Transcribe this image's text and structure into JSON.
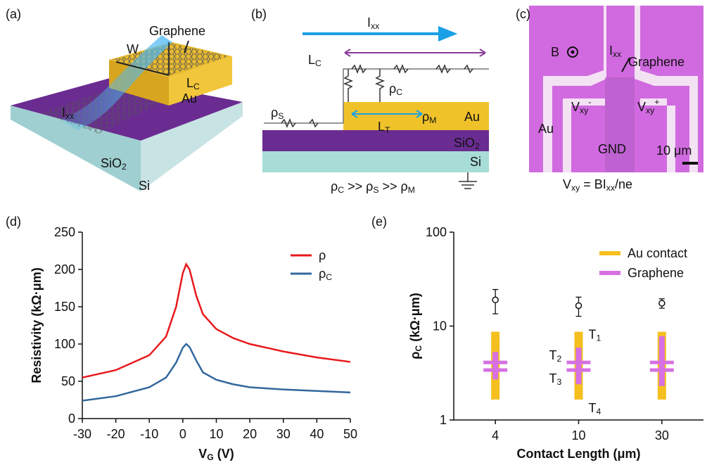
{
  "panels": {
    "a": {
      "label": "(a)",
      "graphene": "Graphene",
      "w": "W",
      "lc": [
        {
          "t": "L"
        },
        {
          "sub": "C"
        }
      ],
      "au": "Au",
      "ixx": [
        {
          "t": "I"
        },
        {
          "sub": "xx"
        }
      ],
      "sio2": [
        {
          "t": "SiO"
        },
        {
          "sub": "2"
        }
      ],
      "si": "Si"
    },
    "b": {
      "label": "(b)",
      "ixx": [
        {
          "t": "I"
        },
        {
          "sub": "xx"
        }
      ],
      "lc": [
        {
          "t": "L"
        },
        {
          "sub": "C"
        }
      ],
      "rhoc": [
        {
          "t": "ρ"
        },
        {
          "sub": "C"
        }
      ],
      "rhos": [
        {
          "t": "ρ"
        },
        {
          "sub": "S"
        }
      ],
      "rhom": [
        {
          "t": "ρ"
        },
        {
          "sub": "M"
        }
      ],
      "au": "Au",
      "lt": [
        {
          "t": "L"
        },
        {
          "sub": "T"
        }
      ],
      "sio2": [
        {
          "t": "SiO"
        },
        {
          "sub": "2"
        }
      ],
      "si": "Si",
      "eq": [
        {
          "t": "ρ"
        },
        {
          "sub": "C"
        },
        {
          "t": " >> ρ"
        },
        {
          "sub": "S"
        },
        {
          "t": " >> ρ"
        },
        {
          "sub": "M"
        }
      ]
    },
    "c": {
      "label": "(c)",
      "b": "B",
      "ixx": [
        {
          "t": "I"
        },
        {
          "sub": "xx"
        }
      ],
      "graphene": "Graphene",
      "vxym": [
        {
          "t": "V"
        },
        {
          "sub": "xy"
        },
        {
          "sup": "-"
        }
      ],
      "vxyp": [
        {
          "t": "V"
        },
        {
          "sub": "xy"
        },
        {
          "sup": "+"
        }
      ],
      "au": "Au",
      "gnd": "GND",
      "scale": "10 μm",
      "eq": [
        {
          "t": "V"
        },
        {
          "sub": "xy"
        },
        {
          "t": " = BI"
        },
        {
          "sub": "xx"
        },
        {
          "t": "/ne"
        }
      ]
    }
  },
  "chart_data": [
    {
      "type": "line",
      "panel_label": "(d)",
      "x_label": [
        {
          "t": "V"
        },
        {
          "sub": "G"
        },
        {
          "t": " (V)"
        }
      ],
      "y_label": [
        {
          "t": "Resistivity (kΩ·μm)"
        }
      ],
      "x": [
        -30,
        -20,
        -10,
        -5,
        -2,
        0,
        1,
        2,
        4,
        6,
        10,
        15,
        20,
        30,
        40,
        50
      ],
      "series": [
        {
          "name": [
            {
              "t": "ρ"
            }
          ],
          "color": "#e8191b",
          "values": [
            55,
            65,
            85,
            110,
            150,
            195,
            207,
            200,
            165,
            140,
            120,
            108,
            100,
            90,
            82,
            76
          ]
        },
        {
          "name": [
            {
              "t": "ρ"
            },
            {
              "sub": "C"
            }
          ],
          "color": "#33679c",
          "values": [
            24,
            30,
            42,
            55,
            75,
            95,
            100,
            96,
            78,
            62,
            52,
            46,
            42,
            39,
            37,
            35
          ]
        }
      ],
      "xlim": [
        -30,
        50
      ],
      "xticks": [
        -30,
        -20,
        -10,
        0,
        10,
        20,
        30,
        40,
        50
      ],
      "ylim": [
        0,
        250
      ],
      "yticks": [
        0,
        50,
        100,
        150,
        200,
        250
      ],
      "legend": "upper right"
    },
    {
      "type": "range",
      "panel_label": "(e)",
      "x_label": [
        {
          "t": "Contact Length (μm)"
        }
      ],
      "y_label": [
        {
          "t": "ρ"
        },
        {
          "sub": "C"
        },
        {
          "t": " (kΩ·μm)"
        }
      ],
      "categories": [
        "4",
        "10",
        "30"
      ],
      "series": [
        {
          "name": "Au contact",
          "color": "#f5bf1f",
          "low": [
            1.65,
            1.65,
            1.65
          ],
          "high": [
            8.7,
            8.7,
            8.7
          ]
        },
        {
          "name": "Graphene",
          "color": "#d670e3",
          "low": [
            2.7,
            2.4,
            2.3
          ],
          "high": [
            5.3,
            5.9,
            7.8
          ],
          "t2": [
            4.1,
            4.1,
            4.1
          ],
          "t3": [
            3.4,
            3.4,
            3.4
          ]
        }
      ],
      "points": {
        "values": [
          19,
          16.5,
          17.5
        ],
        "errors": [
          5.5,
          3.8,
          2
        ]
      },
      "annotations": [
        [
          {
            "t": "T"
          },
          {
            "sub": "1"
          }
        ],
        [
          {
            "t": "T"
          },
          {
            "sub": "2"
          }
        ],
        [
          {
            "t": "T"
          },
          {
            "sub": "3"
          }
        ],
        [
          {
            "t": "T"
          },
          {
            "sub": "4"
          }
        ]
      ],
      "ylim": [
        1,
        100
      ],
      "yticks": [
        1,
        10,
        100
      ],
      "log_y": true,
      "legend": "upper right"
    }
  ]
}
